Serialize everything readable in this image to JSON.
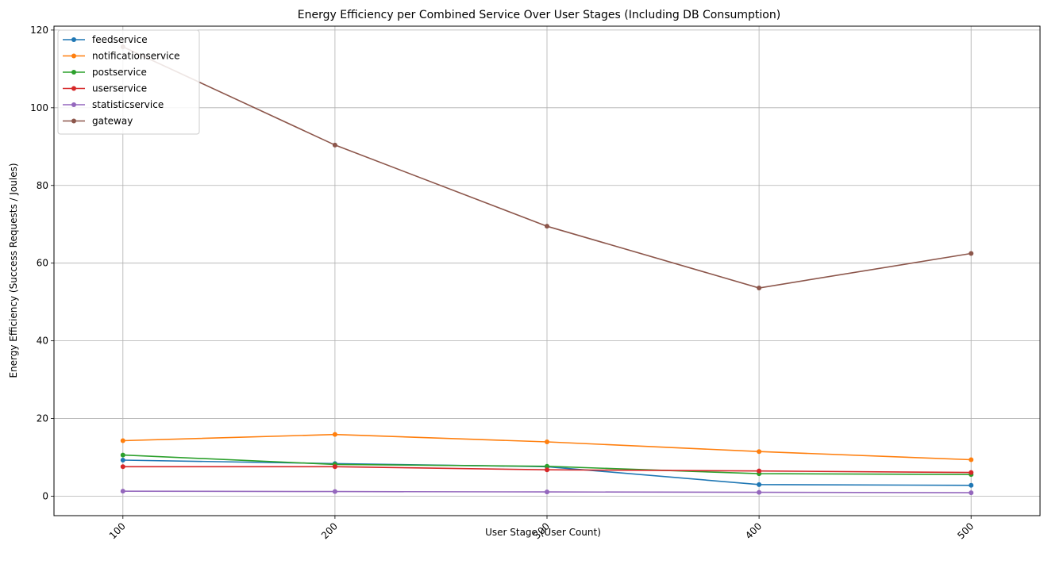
{
  "chart_data": {
    "type": "line",
    "title": "Energy Efficiency per Combined Service Over User Stages (Including DB Consumption)",
    "xlabel": "User Stage (User Count)",
    "ylabel": "Energy Efficiency (Success Requests / Joules)",
    "x": [
      100,
      200,
      300,
      400,
      500
    ],
    "x_tick_labels": [
      "100",
      "200",
      "300",
      "400",
      "500"
    ],
    "y_ticks": [
      0,
      20,
      40,
      60,
      80,
      100,
      120
    ],
    "y_tick_labels": [
      "0",
      "20",
      "40",
      "60",
      "80",
      "100",
      "120"
    ],
    "xlim": [
      67.5,
      532.5
    ],
    "ylim": [
      -5.0,
      121.0
    ],
    "grid": true,
    "legend_position": "top-left",
    "series": [
      {
        "name": "feedservice",
        "color": "#1f77b4",
        "values": [
          9.3,
          8.4,
          7.6,
          3.0,
          2.8
        ]
      },
      {
        "name": "notificationservice",
        "color": "#ff7f0e",
        "values": [
          14.3,
          15.9,
          14.0,
          11.5,
          9.4
        ]
      },
      {
        "name": "postservice",
        "color": "#2ca02c",
        "values": [
          10.6,
          8.2,
          7.7,
          5.8,
          5.6
        ]
      },
      {
        "name": "userservice",
        "color": "#d62728",
        "values": [
          7.6,
          7.6,
          6.8,
          6.5,
          6.1
        ]
      },
      {
        "name": "statisticservice",
        "color": "#9467bd",
        "values": [
          1.3,
          1.2,
          1.1,
          1.0,
          0.9
        ]
      },
      {
        "name": "gateway",
        "color": "#8c564b",
        "values": [
          115.7,
          90.4,
          69.5,
          53.6,
          62.5
        ]
      }
    ]
  }
}
